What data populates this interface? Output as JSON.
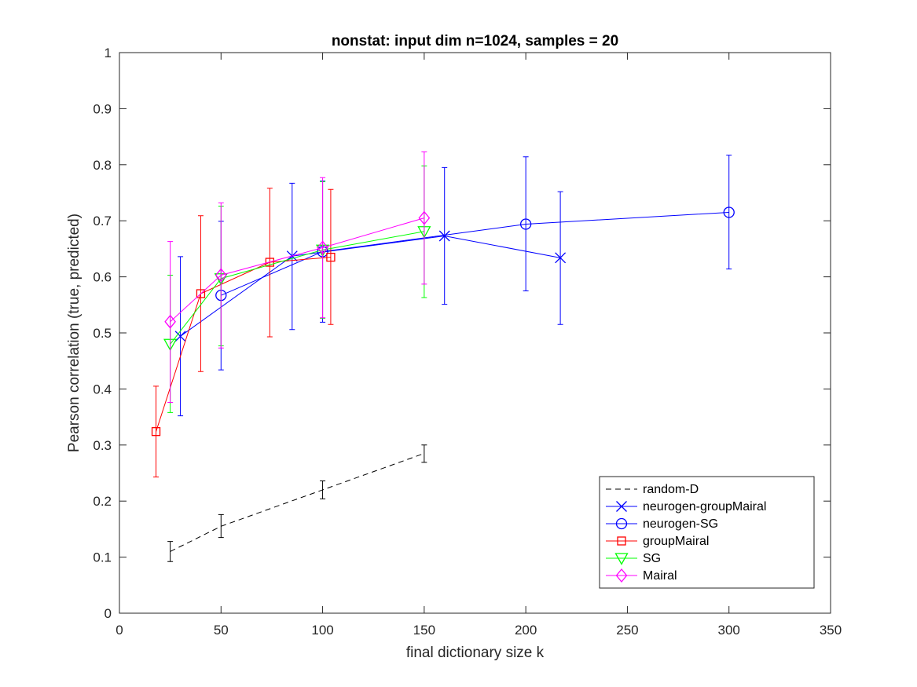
{
  "chart_data": {
    "type": "line",
    "title": "nonstat: input dim n=1024, samples = 20",
    "xlabel": "final dictionary size k",
    "ylabel": "Pearson correlation (true, predicted)",
    "xlim": [
      0,
      350
    ],
    "ylim": [
      0,
      1
    ],
    "xticks": [
      0,
      50,
      100,
      150,
      200,
      250,
      300,
      350
    ],
    "yticks": [
      0,
      0.1,
      0.2,
      0.3,
      0.4,
      0.5,
      0.6,
      0.7,
      0.8,
      0.9,
      1
    ],
    "grid": false,
    "legend_position": "bottom-right",
    "series": [
      {
        "name": "random-D",
        "color": "#000000",
        "line_style": "dashed",
        "marker": "none",
        "points": [
          {
            "x": 25,
            "y": 0.11,
            "lo": 0.092,
            "hi": 0.128
          },
          {
            "x": 50,
            "y": 0.155,
            "lo": 0.135,
            "hi": 0.176
          },
          {
            "x": 100,
            "y": 0.22,
            "lo": 0.204,
            "hi": 0.236
          },
          {
            "x": 150,
            "y": 0.285,
            "lo": 0.269,
            "hi": 0.3
          }
        ]
      },
      {
        "name": "neurogen-groupMairal",
        "color": "#0000ff",
        "line_style": "solid",
        "marker": "x",
        "points": [
          {
            "x": 30,
            "y": 0.494,
            "lo": 0.352,
            "hi": 0.636
          },
          {
            "x": 85,
            "y": 0.637,
            "lo": 0.506,
            "hi": 0.767
          },
          {
            "x": 160,
            "y": 0.673,
            "lo": 0.551,
            "hi": 0.795
          },
          {
            "x": 217,
            "y": 0.634,
            "lo": 0.515,
            "hi": 0.752
          }
        ]
      },
      {
        "name": "neurogen-SG",
        "color": "#0000ff",
        "line_style": "solid",
        "marker": "circle",
        "points": [
          {
            "x": 50,
            "y": 0.567,
            "lo": 0.434,
            "hi": 0.699
          },
          {
            "x": 100,
            "y": 0.645,
            "lo": 0.519,
            "hi": 0.771
          },
          {
            "x": 200,
            "y": 0.694,
            "lo": 0.575,
            "hi": 0.814
          },
          {
            "x": 300,
            "y": 0.715,
            "lo": 0.614,
            "hi": 0.817
          }
        ]
      },
      {
        "name": "groupMairal",
        "color": "#ff0000",
        "line_style": "solid",
        "marker": "square",
        "points": [
          {
            "x": 18,
            "y": 0.324,
            "lo": 0.243,
            "hi": 0.405
          },
          {
            "x": 40,
            "y": 0.57,
            "lo": 0.431,
            "hi": 0.709
          },
          {
            "x": 74,
            "y": 0.626,
            "lo": 0.493,
            "hi": 0.758
          },
          {
            "x": 104,
            "y": 0.635,
            "lo": 0.515,
            "hi": 0.756
          }
        ]
      },
      {
        "name": "SG",
        "color": "#00ff00",
        "line_style": "solid",
        "marker": "triangle-down",
        "points": [
          {
            "x": 25,
            "y": 0.48,
            "lo": 0.358,
            "hi": 0.603
          },
          {
            "x": 50,
            "y": 0.597,
            "lo": 0.477,
            "hi": 0.726
          },
          {
            "x": 100,
            "y": 0.648,
            "lo": 0.526,
            "hi": 0.77
          },
          {
            "x": 150,
            "y": 0.681,
            "lo": 0.563,
            "hi": 0.798
          }
        ]
      },
      {
        "name": "Mairal",
        "color": "#ff00ff",
        "line_style": "solid",
        "marker": "diamond",
        "points": [
          {
            "x": 25,
            "y": 0.52,
            "lo": 0.376,
            "hi": 0.663
          },
          {
            "x": 50,
            "y": 0.603,
            "lo": 0.473,
            "hi": 0.732
          },
          {
            "x": 100,
            "y": 0.652,
            "lo": 0.527,
            "hi": 0.777
          },
          {
            "x": 150,
            "y": 0.705,
            "lo": 0.587,
            "hi": 0.823
          }
        ]
      }
    ]
  }
}
